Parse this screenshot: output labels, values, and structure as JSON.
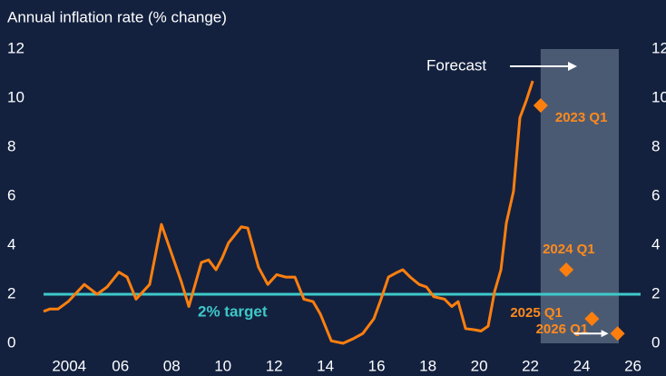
{
  "chart_data": {
    "type": "line",
    "title": "Annual inflation rate (% change)",
    "ylim": [
      0,
      12.0
    ],
    "yticks": [
      0,
      2,
      4,
      6,
      8,
      10,
      12
    ],
    "y2lim": [
      0,
      12.0
    ],
    "y2ticks": [
      0,
      2,
      4,
      6,
      8,
      10,
      12
    ],
    "xlim": [
      2003,
      2026.3
    ],
    "xticks": [
      {
        "value": 2004,
        "label": "2004"
      },
      {
        "value": 2006,
        "label": "06"
      },
      {
        "value": 2008,
        "label": "08"
      },
      {
        "value": 2010,
        "label": "10"
      },
      {
        "value": 2012,
        "label": "12"
      },
      {
        "value": 2014,
        "label": "14"
      },
      {
        "value": 2016,
        "label": "16"
      },
      {
        "value": 2018,
        "label": "18"
      },
      {
        "value": 2020,
        "label": "20"
      },
      {
        "value": 2022,
        "label": "22"
      },
      {
        "value": 2024,
        "label": "24"
      },
      {
        "value": 2026,
        "label": "26"
      }
    ],
    "series": [
      {
        "color": "#ff7f0e",
        "x": [
          2003.0,
          2003.25,
          2003.57,
          2003.96,
          2004.59,
          2005.09,
          2005.48,
          2005.94,
          2006.26,
          2006.61,
          2007.14,
          2007.6,
          2008.38,
          2008.67,
          2009.16,
          2009.44,
          2009.73,
          2009.98,
          2010.22,
          2010.72,
          2010.97,
          2011.39,
          2011.75,
          2012.1,
          2012.45,
          2012.81,
          2013.16,
          2013.52,
          2013.8,
          2014.23,
          2014.69,
          2015.11,
          2015.46,
          2015.89,
          2016.17,
          2016.46,
          2016.81,
          2017.02,
          2017.31,
          2017.66,
          2017.94,
          2018.23,
          2018.65,
          2018.93,
          2019.18,
          2019.47,
          2019.82,
          2020.07,
          2020.35,
          2020.6,
          2020.85,
          2021.06,
          2021.34,
          2021.59,
          2021.84,
          2022.09
        ],
        "values": [
          1.3,
          1.4,
          1.4,
          1.7,
          2.4,
          2.0,
          2.3,
          2.9,
          2.7,
          1.8,
          2.4,
          4.85,
          2.5,
          1.5,
          3.3,
          3.4,
          3.0,
          3.5,
          4.1,
          4.75,
          4.7,
          3.1,
          2.4,
          2.8,
          2.7,
          2.7,
          1.8,
          1.7,
          1.2,
          0.1,
          0.0,
          0.2,
          0.4,
          1.0,
          1.8,
          2.7,
          2.9,
          3.0,
          2.7,
          2.4,
          2.3,
          1.9,
          1.8,
          1.5,
          1.7,
          0.6,
          0.55,
          0.5,
          0.7,
          2.1,
          3.0,
          4.9,
          6.2,
          9.2,
          9.9,
          10.7
        ]
      }
    ],
    "forecast": {
      "label": "Forecast",
      "shaded_xrange": [
        2022.4,
        2025.45
      ],
      "color": "#ff7f0e",
      "x": [
        2022.4,
        2023.4,
        2024.4,
        2025.4
      ],
      "values": [
        9.7,
        3.0,
        1.0,
        0.4
      ],
      "labels": [
        "2023 Q1",
        "2024 Q1",
        "2025 Q1",
        "2026 Q1"
      ]
    },
    "target": {
      "value": 2,
      "label": "2% target",
      "color": "#3ec9c9"
    }
  }
}
